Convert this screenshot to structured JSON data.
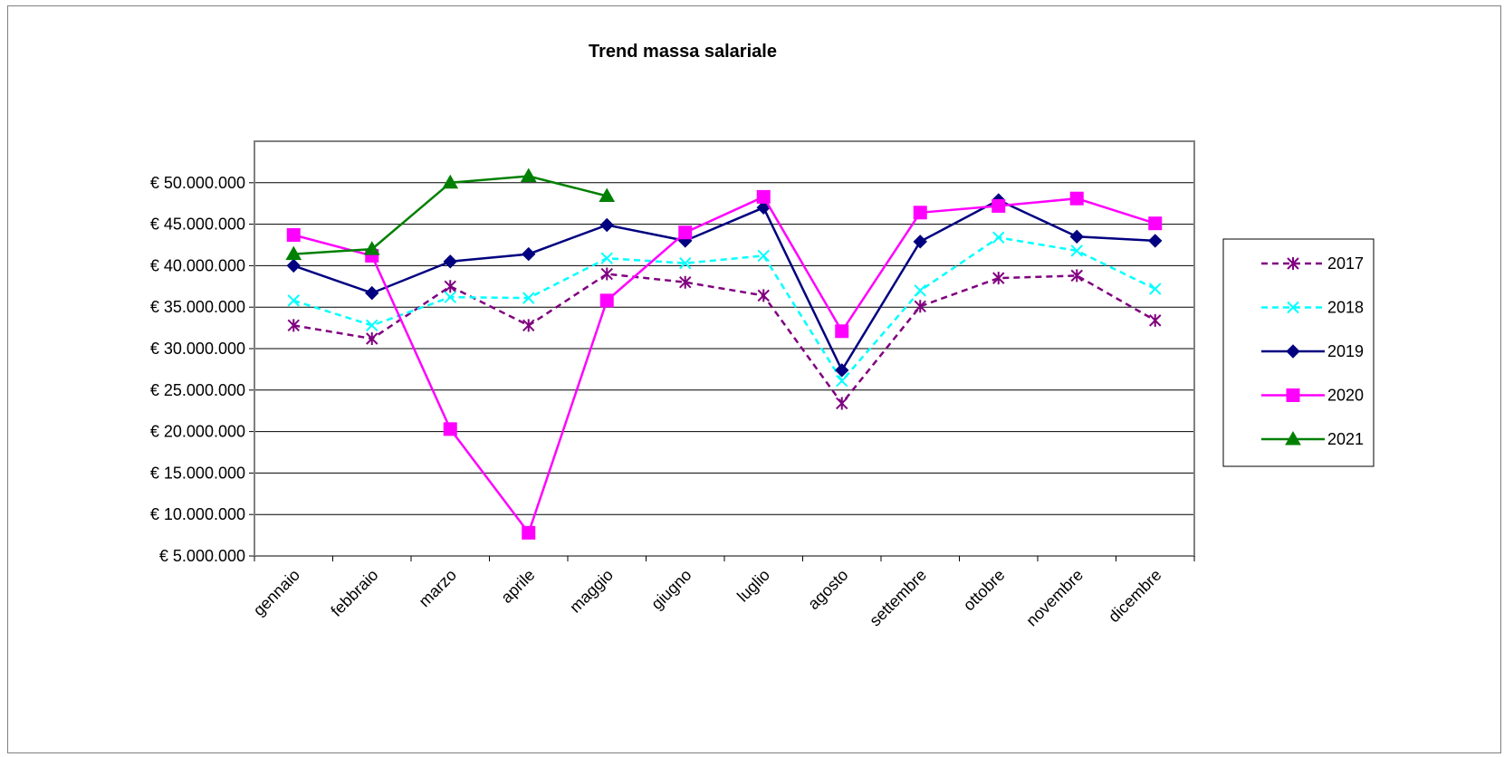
{
  "chart_data": {
    "type": "line",
    "title": "Trend massa salariale",
    "xlabel": "",
    "ylabel": "",
    "categories": [
      "gennaio",
      "febbraio",
      "marzo",
      "aprile",
      "maggio",
      "giugno",
      "luglio",
      "agosto",
      "settembre",
      "ottobre",
      "novembre",
      "dicembre"
    ],
    "y_ticks": [
      "€ 5.000.000",
      "€ 10.000.000",
      "€ 15.000.000",
      "€ 20.000.000",
      "€ 25.000.000",
      "€ 30.000.000",
      "€ 35.000.000",
      "€ 40.000.000",
      "€ 45.000.000",
      "€ 50.000.000"
    ],
    "y_tick_values": [
      5000000,
      10000000,
      15000000,
      20000000,
      25000000,
      30000000,
      35000000,
      40000000,
      45000000,
      50000000
    ],
    "ylim": [
      5000000,
      55000000
    ],
    "grid": true,
    "legend_position": "right",
    "series": [
      {
        "name": "2017",
        "color": "#800080",
        "dash": true,
        "marker": "asterisk",
        "values": [
          32800000,
          31200000,
          37500000,
          32800000,
          39000000,
          38000000,
          36400000,
          23400000,
          35100000,
          38500000,
          38800000,
          33400000
        ]
      },
      {
        "name": "2018",
        "color": "#00FFFF",
        "dash": true,
        "marker": "x",
        "values": [
          35800000,
          32800000,
          36200000,
          36100000,
          40900000,
          40300000,
          41200000,
          26100000,
          37000000,
          43400000,
          41800000,
          37200000
        ]
      },
      {
        "name": "2019",
        "color": "#000080",
        "dash": false,
        "marker": "diamond",
        "values": [
          40000000,
          36700000,
          40500000,
          41400000,
          44900000,
          43000000,
          47000000,
          27400000,
          42900000,
          47900000,
          43500000,
          43000000
        ]
      },
      {
        "name": "2020",
        "color": "#FF00FF",
        "dash": false,
        "marker": "square",
        "values": [
          43700000,
          41200000,
          20300000,
          7800000,
          35800000,
          44000000,
          48300000,
          32100000,
          46400000,
          47200000,
          48100000,
          45100000
        ]
      },
      {
        "name": "2021",
        "color": "#008000",
        "dash": false,
        "marker": "triangle",
        "values": [
          41400000,
          42000000,
          50000000,
          50800000,
          48400000,
          null,
          null,
          null,
          null,
          null,
          null,
          null
        ]
      }
    ]
  }
}
